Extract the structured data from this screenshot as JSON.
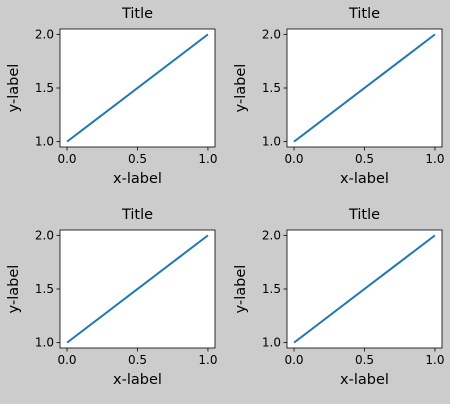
{
  "figure": {
    "background": "#cccccc",
    "axes_background": "#ffffff",
    "line_color": "#1f77b4"
  },
  "chart_data": [
    {
      "type": "line",
      "title": "Title",
      "xlabel": "x-label",
      "ylabel": "y-label",
      "xlim": [
        -0.05,
        1.05
      ],
      "ylim": [
        0.95,
        2.05
      ],
      "xticks": [
        "0.0",
        "0.5",
        "1.0"
      ],
      "yticks": [
        "1.0",
        "1.5",
        "2.0"
      ],
      "grid": false,
      "series": [
        {
          "x": [
            0,
            1
          ],
          "y": [
            1,
            2
          ]
        }
      ]
    },
    {
      "type": "line",
      "title": "Title",
      "xlabel": "x-label",
      "ylabel": "y-label",
      "xlim": [
        -0.05,
        1.05
      ],
      "ylim": [
        0.95,
        2.05
      ],
      "xticks": [
        "0.0",
        "0.5",
        "1.0"
      ],
      "yticks": [
        "1.0",
        "1.5",
        "2.0"
      ],
      "grid": false,
      "series": [
        {
          "x": [
            0,
            1
          ],
          "y": [
            1,
            2
          ]
        }
      ]
    },
    {
      "type": "line",
      "title": "Title",
      "xlabel": "x-label",
      "ylabel": "y-label",
      "xlim": [
        -0.05,
        1.05
      ],
      "ylim": [
        0.95,
        2.05
      ],
      "xticks": [
        "0.0",
        "0.5",
        "1.0"
      ],
      "yticks": [
        "1.0",
        "1.5",
        "2.0"
      ],
      "grid": false,
      "series": [
        {
          "x": [
            0,
            1
          ],
          "y": [
            1,
            2
          ]
        }
      ]
    },
    {
      "type": "line",
      "title": "Title",
      "xlabel": "x-label",
      "ylabel": "y-label",
      "xlim": [
        -0.05,
        1.05
      ],
      "ylim": [
        0.95,
        2.05
      ],
      "xticks": [
        "0.0",
        "0.5",
        "1.0"
      ],
      "yticks": [
        "1.0",
        "1.5",
        "2.0"
      ],
      "grid": false,
      "series": [
        {
          "x": [
            0,
            1
          ],
          "y": [
            1,
            2
          ]
        }
      ]
    }
  ]
}
